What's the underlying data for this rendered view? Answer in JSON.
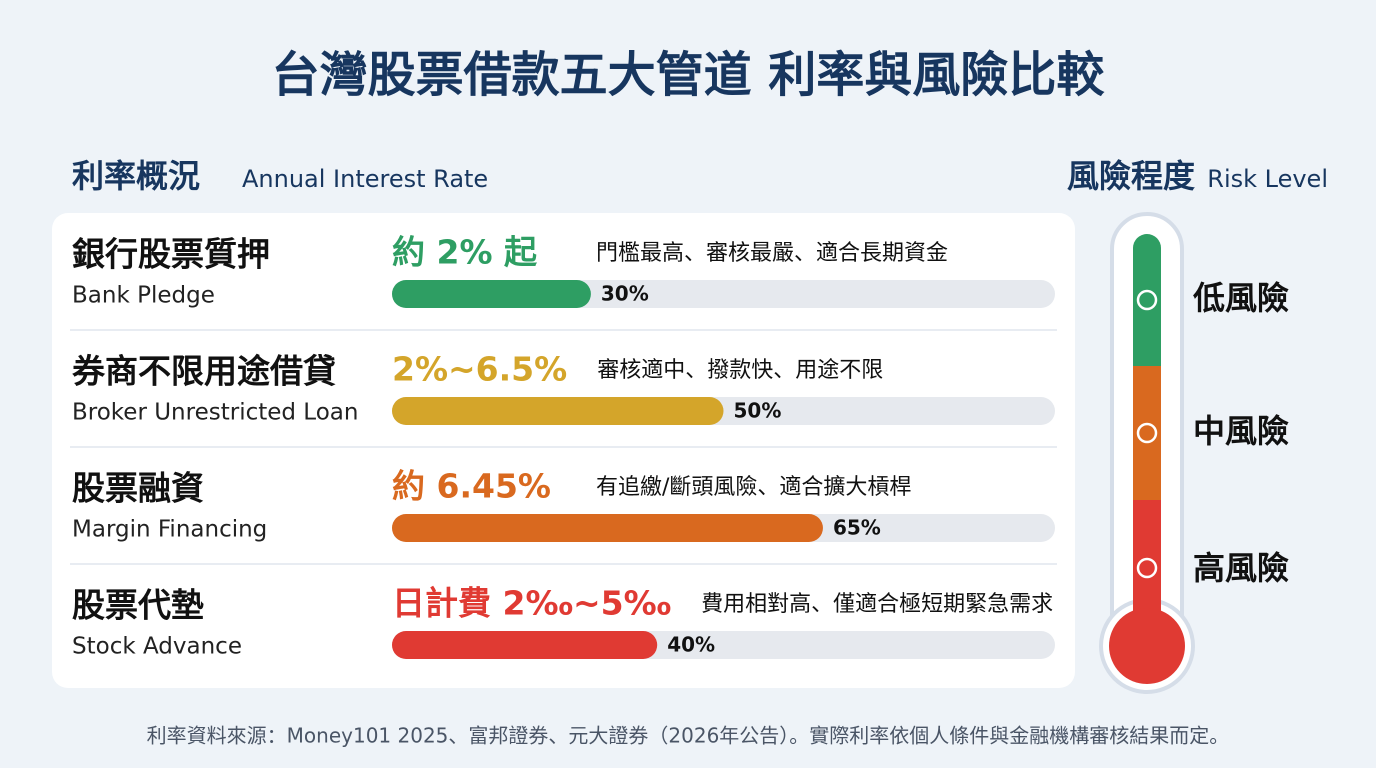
{
  "title": "台灣股票借款五大管道 利率與風險比較",
  "rates": {
    "heading": "利率概況",
    "heading_en": "Annual Interest Rate",
    "xlim": [
      0,
      100
    ],
    "items": [
      {
        "name": "銀行股票質押",
        "name_en": "Bank Pledge",
        "rate": "約 2% 起",
        "note": "門檻最高、審核最嚴、適合長期資金",
        "value": 30,
        "value_label": "30%",
        "color": "#2e9e63"
      },
      {
        "name": "券商不限用途借貸",
        "name_en": "Broker Unrestricted Loan",
        "rate": "2%~6.5%",
        "note": "審核適中、撥款快、用途不限",
        "value": 50,
        "value_label": "50%",
        "color": "#d4a52a"
      },
      {
        "name": "股票融資",
        "name_en": "Margin Financing",
        "rate": "約 6.45%",
        "note": "有追繳/斷頭風險、適合擴大槓桿",
        "value": 65,
        "value_label": "65%",
        "color": "#d9691f"
      },
      {
        "name": "股票代墊",
        "name_en": "Stock Advance",
        "rate": "日計費 2‰~5‰",
        "note": "費用相對高、僅適合極短期緊急需求",
        "value": 40,
        "value_label": "40%",
        "color": "#e03a33"
      }
    ]
  },
  "risk": {
    "heading": "風險程度",
    "heading_en": "Risk Level",
    "levels": [
      {
        "label": "低風險",
        "color": "#2e9e63"
      },
      {
        "label": "中風險",
        "color": "#d9691f"
      },
      {
        "label": "高風險",
        "color": "#e03a33"
      }
    ]
  },
  "footer": "利率資料來源：Money101 2025、富邦證券、元大證券（2026年公告）。實際利率依個人條件與金融機構審核結果而定。"
}
